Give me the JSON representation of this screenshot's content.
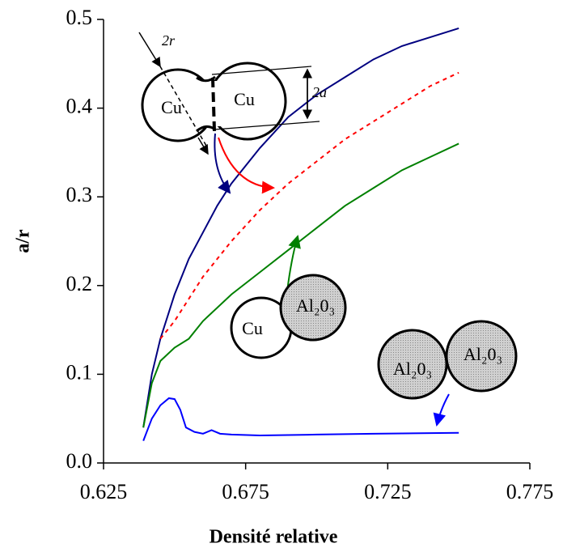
{
  "chart_data": {
    "type": "line",
    "xlabel": "Densité relative",
    "ylabel": "a/r",
    "xlim": [
      0.625,
      0.775
    ],
    "ylim": [
      0,
      0.5
    ],
    "xticks": [
      0.625,
      0.675,
      0.725,
      0.775
    ],
    "yticks": [
      {
        "value": 0,
        "label": "0.0"
      },
      0.1,
      0.2,
      0.3,
      0.4,
      0.5
    ],
    "grid": false,
    "series": [
      {
        "color": "#000080",
        "dash": false,
        "x": [
          0.639,
          0.642,
          0.645,
          0.65,
          0.655,
          0.66,
          0.665,
          0.67,
          0.68,
          0.69,
          0.7,
          0.71,
          0.72,
          0.73,
          0.74,
          0.75
        ],
        "values": [
          0.04,
          0.1,
          0.14,
          0.19,
          0.23,
          0.26,
          0.29,
          0.315,
          0.355,
          0.39,
          0.415,
          0.435,
          0.455,
          0.47,
          0.48,
          0.49
        ]
      },
      {
        "color": "#ff0000",
        "dash": true,
        "x": [
          0.645,
          0.65,
          0.66,
          0.67,
          0.68,
          0.69,
          0.7,
          0.71,
          0.72,
          0.73,
          0.74,
          0.75
        ],
        "values": [
          0.14,
          0.16,
          0.21,
          0.25,
          0.285,
          0.315,
          0.34,
          0.365,
          0.385,
          0.405,
          0.425,
          0.44
        ]
      },
      {
        "color": "#008000",
        "dash": false,
        "x": [
          0.639,
          0.642,
          0.645,
          0.65,
          0.655,
          0.66,
          0.67,
          0.68,
          0.69,
          0.7,
          0.71,
          0.72,
          0.73,
          0.74,
          0.75
        ],
        "values": [
          0.04,
          0.09,
          0.115,
          0.13,
          0.14,
          0.16,
          0.19,
          0.215,
          0.24,
          0.265,
          0.29,
          0.31,
          0.33,
          0.345,
          0.36
        ]
      },
      {
        "color": "#0000ff",
        "dash": false,
        "x": [
          0.639,
          0.642,
          0.645,
          0.648,
          0.65,
          0.652,
          0.654,
          0.657,
          0.66,
          0.663,
          0.666,
          0.67,
          0.68,
          0.7,
          0.72,
          0.75
        ],
        "values": [
          0.025,
          0.05,
          0.065,
          0.073,
          0.072,
          0.06,
          0.04,
          0.035,
          0.033,
          0.037,
          0.033,
          0.032,
          0.031,
          0.032,
          0.033,
          0.034
        ]
      }
    ],
    "annotations": [
      "2r",
      "2a",
      "Cu",
      "Cu",
      "Cu",
      "Al₂0₃",
      "Al₂0₃",
      "Al₂0₃"
    ]
  }
}
